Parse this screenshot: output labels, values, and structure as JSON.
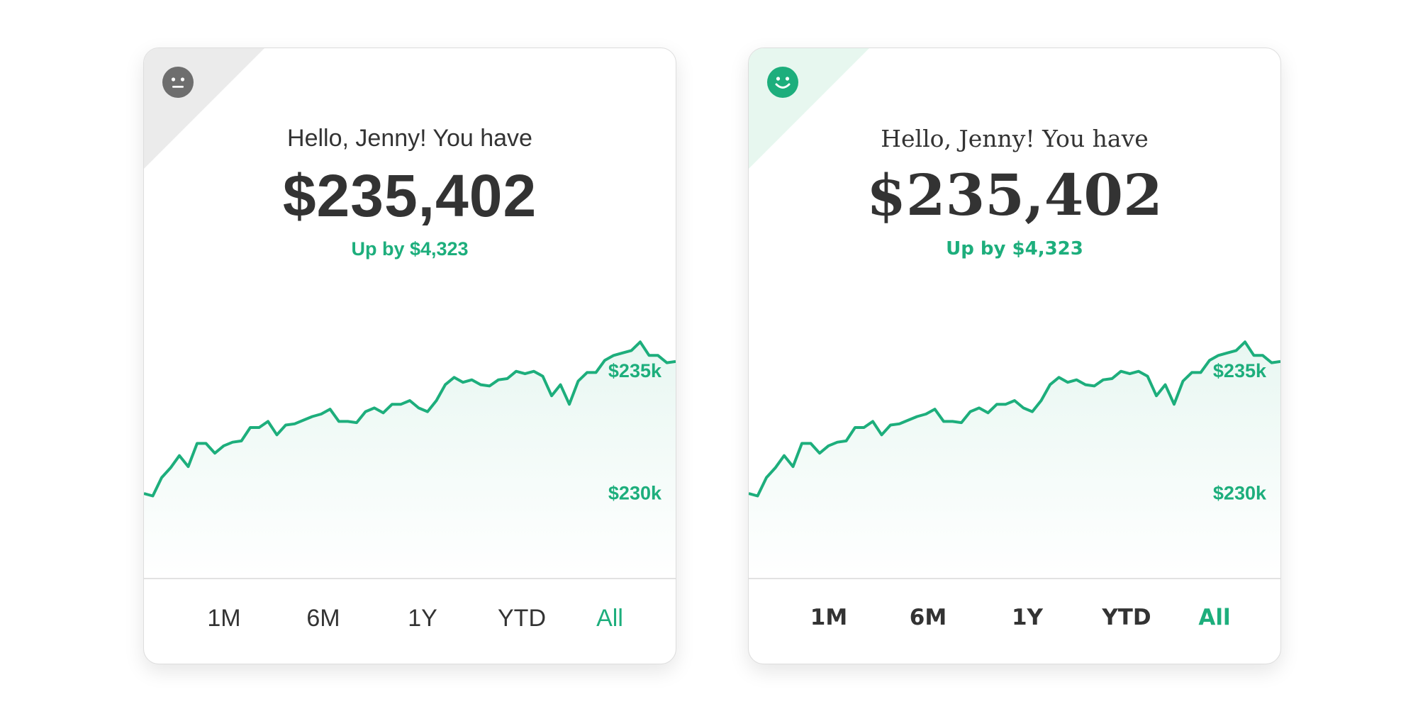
{
  "colors": {
    "accent": "#1dae7c",
    "text": "#333333",
    "neutral_corner": "#ebebeb",
    "positive_corner": "#e7f7ef",
    "neutral_face": "#6e6e6e"
  },
  "cards": [
    {
      "variant": "sans",
      "mood_icon": "neutral-face-icon",
      "greeting": "Hello, Jenny! You have",
      "balance": "$235,402",
      "change": "Up by $4,323",
      "periods": [
        "1M",
        "6M",
        "1Y",
        "YTD",
        "All"
      ],
      "selected_period": "All"
    },
    {
      "variant": "serif",
      "mood_icon": "smiley-face-icon",
      "greeting": "Hello, Jenny! You have",
      "balance": "$235,402",
      "change": "Up by $4,323",
      "periods": [
        "1M",
        "6M",
        "1Y",
        "YTD",
        "All"
      ],
      "selected_period": "All"
    }
  ],
  "chart_data": [
    {
      "type": "line",
      "ylim": [
        226500,
        237000
      ],
      "y_tick_labels": [
        "$235k",
        "$230k"
      ],
      "y_ticks": [
        235000,
        230000
      ],
      "grid": false,
      "values": [
        229950,
        229850,
        230600,
        231000,
        231500,
        231050,
        232000,
        232000,
        231600,
        231900,
        232050,
        232100,
        232650,
        232650,
        232900,
        232350,
        232750,
        232800,
        232950,
        233100,
        233200,
        233400,
        232900,
        232900,
        232850,
        233300,
        233450,
        233250,
        233600,
        233600,
        233750,
        233450,
        233300,
        233750,
        234400,
        234700,
        234500,
        234600,
        234400,
        234350,
        234600,
        234650,
        234950,
        234850,
        234950,
        234750,
        233950,
        234400,
        233600,
        234550,
        234900,
        234900,
        235400,
        235600,
        235700,
        235800,
        236150,
        235600,
        235600,
        235300,
        235350
      ]
    },
    {
      "type": "line",
      "ylim": [
        226500,
        237000
      ],
      "y_tick_labels": [
        "$235k",
        "$230k"
      ],
      "y_ticks": [
        235000,
        230000
      ],
      "grid": false,
      "values": [
        229950,
        229850,
        230600,
        231000,
        231500,
        231050,
        232000,
        232000,
        231600,
        231900,
        232050,
        232100,
        232650,
        232650,
        232900,
        232350,
        232750,
        232800,
        232950,
        233100,
        233200,
        233400,
        232900,
        232900,
        232850,
        233300,
        233450,
        233250,
        233600,
        233600,
        233750,
        233450,
        233300,
        233750,
        234400,
        234700,
        234500,
        234600,
        234400,
        234350,
        234600,
        234650,
        234950,
        234850,
        234950,
        234750,
        233950,
        234400,
        233600,
        234550,
        234900,
        234900,
        235400,
        235600,
        235700,
        235800,
        236150,
        235600,
        235600,
        235300,
        235350
      ]
    }
  ]
}
